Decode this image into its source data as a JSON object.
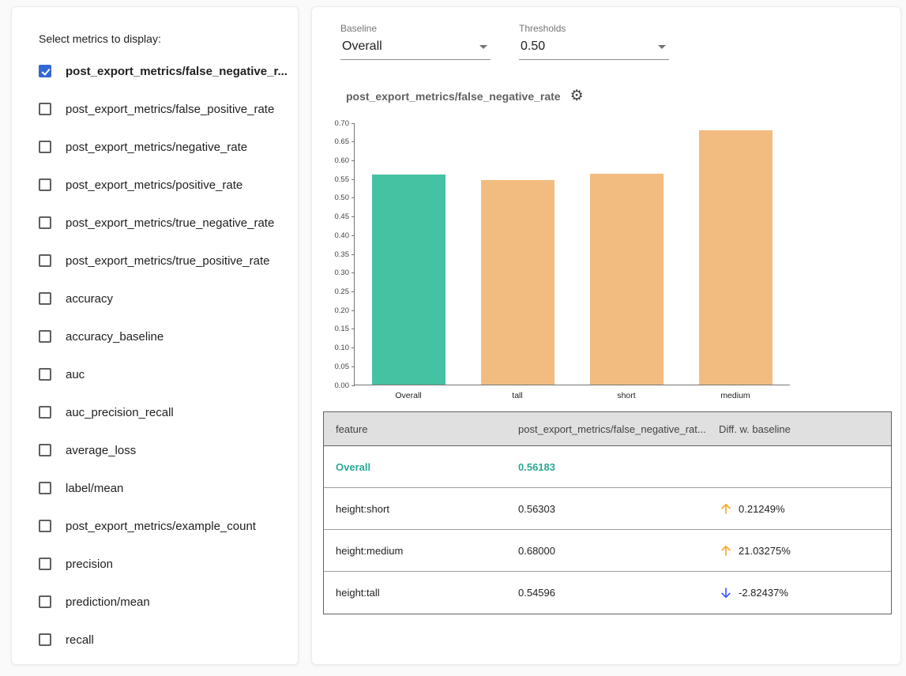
{
  "left_panel": {
    "title": "Select metrics to display:",
    "metrics": [
      {
        "label": "post_export_metrics/false_negative_r...",
        "checked": true
      },
      {
        "label": "post_export_metrics/false_positive_rate",
        "checked": false
      },
      {
        "label": "post_export_metrics/negative_rate",
        "checked": false
      },
      {
        "label": "post_export_metrics/positive_rate",
        "checked": false
      },
      {
        "label": "post_export_metrics/true_negative_rate",
        "checked": false
      },
      {
        "label": "post_export_metrics/true_positive_rate",
        "checked": false
      },
      {
        "label": "accuracy",
        "checked": false
      },
      {
        "label": "accuracy_baseline",
        "checked": false
      },
      {
        "label": "auc",
        "checked": false
      },
      {
        "label": "auc_precision_recall",
        "checked": false
      },
      {
        "label": "average_loss",
        "checked": false
      },
      {
        "label": "label/mean",
        "checked": false
      },
      {
        "label": "post_export_metrics/example_count",
        "checked": false
      },
      {
        "label": "precision",
        "checked": false
      },
      {
        "label": "prediction/mean",
        "checked": false
      },
      {
        "label": "recall",
        "checked": false
      }
    ]
  },
  "controls": {
    "baseline": {
      "label": "Baseline",
      "value": "Overall"
    },
    "thresholds": {
      "label": "Thresholds",
      "value": "0.50"
    }
  },
  "chart": {
    "title": "post_export_metrics/false_negative_rate",
    "chart_data": {
      "type": "bar",
      "categories": [
        "Overall",
        "tall",
        "short",
        "medium"
      ],
      "values": [
        0.56183,
        0.54596,
        0.56303,
        0.68
      ],
      "bar_colors": [
        "#45c2a2",
        "#f2bc80",
        "#f2bc80",
        "#f2bc80"
      ],
      "ylim": [
        0,
        0.7
      ],
      "yticks": [
        "0.00",
        "0.05",
        "0.10",
        "0.15",
        "0.20",
        "0.25",
        "0.30",
        "0.35",
        "0.40",
        "0.45",
        "0.50",
        "0.55",
        "0.60",
        "0.65",
        "0.70"
      ],
      "grid": false,
      "legend": false,
      "title": "post_export_metrics/false_negative_rate",
      "xlabel": "",
      "ylabel": ""
    }
  },
  "table": {
    "headers": [
      "feature",
      "post_export_metrics/false_negative_rat...",
      "Diff. w. baseline"
    ],
    "rows": [
      {
        "feature": "Overall",
        "value": "0.56183",
        "diff": "",
        "direction": "none",
        "is_baseline": true
      },
      {
        "feature": "height:short",
        "value": "0.56303",
        "diff": "0.21249%",
        "direction": "up",
        "is_baseline": false
      },
      {
        "feature": "height:medium",
        "value": "0.68000",
        "diff": "21.03275%",
        "direction": "up",
        "is_baseline": false
      },
      {
        "feature": "height:tall",
        "value": "0.54596",
        "diff": "-2.82437%",
        "direction": "down",
        "is_baseline": false
      }
    ]
  },
  "colors": {
    "baseline_bar": "#45c2a2",
    "comparison_bar": "#f2bc80",
    "baseline_text": "#2aa894",
    "up_arrow": "#f9a825",
    "down_arrow": "#3d5afe",
    "checkbox_checked": "#3367d6"
  }
}
